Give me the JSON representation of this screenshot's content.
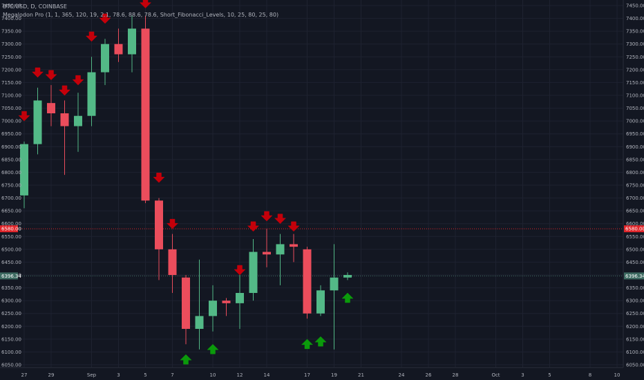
{
  "header": {
    "symbol": "BTC/USD, D, COINBASE",
    "indicator": "Megalodon Pro (1, 1, 365, 120, 19, 2.1, 78.6, 88.6, 78.6, Short_Fibonacci_Levels, 10, 25, 80, 25, 80)"
  },
  "colors": {
    "background": "#131722",
    "grid": "#1e2230",
    "up": "#53b987",
    "down": "#eb4d5c",
    "sell_arrow": "#c4000a",
    "buy_arrow": "#0b9a0b",
    "axis_text": "#b2b5be",
    "price_line_red": "#e0262b",
    "price_line_green": "#3e6b62"
  },
  "chart_data": {
    "type": "candlestick",
    "y_ticks": [
      6050,
      6100,
      6150,
      6200,
      6250,
      6300,
      6350,
      6400,
      6450,
      6500,
      6550,
      6600,
      6650,
      6700,
      6750,
      6800,
      6850,
      6900,
      6950,
      7000,
      7050,
      7100,
      7150,
      7200,
      7250,
      7300,
      7350,
      7400,
      7450
    ],
    "ylim": [
      6030,
      7455
    ],
    "x_ticks": [
      {
        "label": "27",
        "day": 0
      },
      {
        "label": "29",
        "day": 2
      },
      {
        "label": "Sep",
        "day": 5
      },
      {
        "label": "3",
        "day": 7
      },
      {
        "label": "5",
        "day": 9
      },
      {
        "label": "7",
        "day": 11
      },
      {
        "label": "10",
        "day": 14
      },
      {
        "label": "12",
        "day": 16
      },
      {
        "label": "14",
        "day": 18
      },
      {
        "label": "17",
        "day": 21
      },
      {
        "label": "19",
        "day": 23
      },
      {
        "label": "21",
        "day": 25
      },
      {
        "label": "24",
        "day": 28
      },
      {
        "label": "26",
        "day": 30
      },
      {
        "label": "28",
        "day": 32
      },
      {
        "label": "Oct",
        "day": 35
      },
      {
        "label": "3",
        "day": 37
      },
      {
        "label": "5",
        "day": 39
      },
      {
        "label": "8",
        "day": 42
      },
      {
        "label": "10",
        "day": 44
      }
    ],
    "candles": [
      {
        "day": 0,
        "o": 6710,
        "h": 6920,
        "l": 6660,
        "c": 6910
      },
      {
        "day": 1,
        "o": 6910,
        "h": 7130,
        "l": 6870,
        "c": 7080
      },
      {
        "day": 2,
        "o": 7070,
        "h": 7140,
        "l": 6980,
        "c": 7030
      },
      {
        "day": 3,
        "o": 7030,
        "h": 7080,
        "l": 6790,
        "c": 6980
      },
      {
        "day": 4,
        "o": 6980,
        "h": 7110,
        "l": 6880,
        "c": 7020
      },
      {
        "day": 5,
        "o": 7020,
        "h": 7250,
        "l": 6980,
        "c": 7190
      },
      {
        "day": 6,
        "o": 7190,
        "h": 7320,
        "l": 7140,
        "c": 7300
      },
      {
        "day": 7,
        "o": 7300,
        "h": 7360,
        "l": 7230,
        "c": 7260
      },
      {
        "day": 8,
        "o": 7260,
        "h": 7410,
        "l": 7190,
        "c": 7360
      },
      {
        "day": 9,
        "o": 7360,
        "h": 7410,
        "l": 6680,
        "c": 6690
      },
      {
        "day": 10,
        "o": 6690,
        "h": 6700,
        "l": 6380,
        "c": 6500
      },
      {
        "day": 11,
        "o": 6500,
        "h": 6560,
        "l": 6330,
        "c": 6400
      },
      {
        "day": 12,
        "o": 6390,
        "h": 6400,
        "l": 6130,
        "c": 6190
      },
      {
        "day": 13,
        "o": 6190,
        "h": 6460,
        "l": 6110,
        "c": 6240
      },
      {
        "day": 14,
        "o": 6240,
        "h": 6360,
        "l": 6180,
        "c": 6300
      },
      {
        "day": 15,
        "o": 6300,
        "h": 6310,
        "l": 6240,
        "c": 6290
      },
      {
        "day": 16,
        "o": 6290,
        "h": 6410,
        "l": 6190,
        "c": 6330
      },
      {
        "day": 17,
        "o": 6330,
        "h": 6540,
        "l": 6300,
        "c": 6490
      },
      {
        "day": 18,
        "o": 6490,
        "h": 6580,
        "l": 6430,
        "c": 6480
      },
      {
        "day": 19,
        "o": 6480,
        "h": 6560,
        "l": 6360,
        "c": 6520
      },
      {
        "day": 20,
        "o": 6520,
        "h": 6560,
        "l": 6450,
        "c": 6510
      },
      {
        "day": 21,
        "o": 6500,
        "h": 6510,
        "l": 6230,
        "c": 6250
      },
      {
        "day": 22,
        "o": 6250,
        "h": 6360,
        "l": 6240,
        "c": 6340
      },
      {
        "day": 23,
        "o": 6340,
        "h": 6520,
        "l": 6110,
        "c": 6390
      },
      {
        "day": 24,
        "o": 6390,
        "h": 6410,
        "l": 6380,
        "c": 6400
      }
    ],
    "sell_signals": [
      {
        "day": 0,
        "price": 7000
      },
      {
        "day": 1,
        "price": 7170
      },
      {
        "day": 2,
        "price": 7160
      },
      {
        "day": 3,
        "price": 7100
      },
      {
        "day": 4,
        "price": 7140
      },
      {
        "day": 5,
        "price": 7310
      },
      {
        "day": 6,
        "price": 7380
      },
      {
        "day": 9,
        "price": 7440
      },
      {
        "day": 10,
        "price": 6760
      },
      {
        "day": 11,
        "price": 6580
      },
      {
        "day": 16,
        "price": 6400
      },
      {
        "day": 17,
        "price": 6570
      },
      {
        "day": 18,
        "price": 6610
      },
      {
        "day": 19,
        "price": 6600
      },
      {
        "day": 20,
        "price": 6570
      }
    ],
    "buy_signals": [
      {
        "day": 12,
        "price": 6090
      },
      {
        "day": 14,
        "price": 6130
      },
      {
        "day": 21,
        "price": 6150
      },
      {
        "day": 22,
        "price": 6160
      },
      {
        "day": 24,
        "price": 6330
      }
    ],
    "price_lines": [
      {
        "price": 6580,
        "label": "6580.00",
        "color": "#e0262b"
      },
      {
        "price": 6396.34,
        "label": "6396.34",
        "color": "#3e6b62"
      }
    ]
  }
}
